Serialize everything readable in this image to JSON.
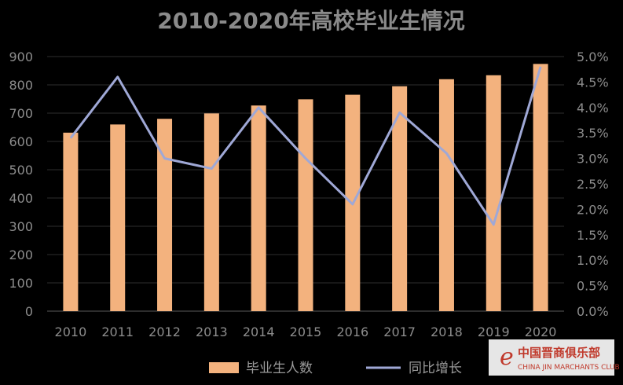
{
  "chart_data": {
    "type": "bar",
    "title": "2010-2020年高校毕业生情况",
    "categories": [
      "2010",
      "2011",
      "2012",
      "2013",
      "2014",
      "2015",
      "2016",
      "2017",
      "2018",
      "2019",
      "2020"
    ],
    "series": [
      {
        "name": "毕业生人数",
        "type": "bar",
        "axis": "left",
        "color": "#f3b27e",
        "values": [
          631,
          660,
          680,
          699,
          727,
          749,
          765,
          795,
          820,
          834,
          874
        ]
      },
      {
        "name": "同比增长",
        "type": "line",
        "axis": "right",
        "color": "#9fa8d6",
        "values": [
          3.4,
          4.6,
          3.0,
          2.8,
          4.0,
          3.0,
          2.1,
          3.9,
          3.1,
          1.7,
          4.8
        ]
      }
    ],
    "ylim_left": [
      0,
      900
    ],
    "yticks_left": [
      "0",
      "100",
      "200",
      "300",
      "400",
      "500",
      "600",
      "700",
      "800",
      "900"
    ],
    "ylim_right": [
      0,
      5.0
    ],
    "yticks_right": [
      "0.0%",
      "0.5%",
      "1.0%",
      "1.5%",
      "2.0%",
      "2.5%",
      "3.0%",
      "3.5%",
      "4.0%",
      "4.5%",
      "5.0%"
    ],
    "grid": true,
    "legend_position": "bottom"
  },
  "watermark": {
    "chinese": "中国晋商俱乐部",
    "english": "CHINA JIN MARCHANTS CLUB",
    "logo_char": "e"
  }
}
